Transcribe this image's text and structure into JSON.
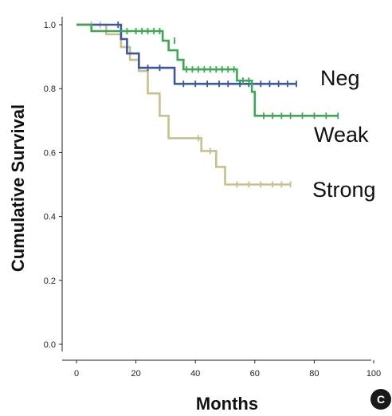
{
  "chart_data": {
    "type": "line",
    "xlabel": "Months",
    "ylabel": "Cumulative Survival",
    "xlim": [
      0,
      100
    ],
    "ylim": [
      0,
      1.0
    ],
    "x_ticks": [
      0,
      20,
      40,
      60,
      80,
      100
    ],
    "y_ticks": [
      0.0,
      0.2,
      0.4,
      0.6,
      0.8,
      1.0
    ],
    "x_tick_labels": [
      "0",
      "20",
      "40",
      "60",
      "80",
      "100"
    ],
    "y_tick_labels": [
      "0.0",
      "0.2",
      "0.4",
      "0.6",
      "0.8",
      "1.0"
    ],
    "panel_label": "C",
    "grid": false,
    "series": [
      {
        "name": "Neg",
        "color": "#3a56a8",
        "step_points": [
          [
            0,
            1.0
          ],
          [
            15,
            1.0
          ],
          [
            15,
            0.955
          ],
          [
            17,
            0.955
          ],
          [
            17,
            0.91
          ],
          [
            21,
            0.91
          ],
          [
            21,
            0.865
          ],
          [
            33,
            0.865
          ],
          [
            33,
            0.815
          ],
          [
            74,
            0.815
          ]
        ],
        "censored": [
          [
            14,
            1.0
          ],
          [
            24,
            0.865
          ],
          [
            28,
            0.865
          ],
          [
            36,
            0.815
          ],
          [
            40,
            0.815
          ],
          [
            44,
            0.815
          ],
          [
            48,
            0.815
          ],
          [
            51,
            0.815
          ],
          [
            55,
            0.815
          ],
          [
            58,
            0.815
          ],
          [
            62,
            0.815
          ],
          [
            65,
            0.815
          ],
          [
            68,
            0.815
          ],
          [
            71,
            0.815
          ],
          [
            74,
            0.815
          ]
        ]
      },
      {
        "name": "Weak",
        "color": "#3aaa50",
        "step_points": [
          [
            0,
            1.0
          ],
          [
            5,
            1.0
          ],
          [
            5,
            0.98
          ],
          [
            29,
            0.98
          ],
          [
            29,
            0.95
          ],
          [
            31,
            0.95
          ],
          [
            31,
            0.92
          ],
          [
            34,
            0.92
          ],
          [
            34,
            0.89
          ],
          [
            36,
            0.89
          ],
          [
            36,
            0.86
          ],
          [
            54,
            0.86
          ],
          [
            54,
            0.825
          ],
          [
            59,
            0.825
          ],
          [
            59,
            0.79
          ],
          [
            60,
            0.79
          ],
          [
            60,
            0.715
          ],
          [
            88,
            0.715
          ]
        ],
        "censored": [
          [
            17,
            0.98
          ],
          [
            20,
            0.98
          ],
          [
            22,
            0.98
          ],
          [
            24,
            0.98
          ],
          [
            26,
            0.98
          ],
          [
            28,
            0.98
          ],
          [
            33,
            0.95
          ],
          [
            37,
            0.86
          ],
          [
            39,
            0.86
          ],
          [
            41,
            0.86
          ],
          [
            43,
            0.86
          ],
          [
            45,
            0.86
          ],
          [
            47,
            0.86
          ],
          [
            49,
            0.86
          ],
          [
            51,
            0.86
          ],
          [
            53,
            0.86
          ],
          [
            56,
            0.825
          ],
          [
            58,
            0.825
          ],
          [
            63,
            0.715
          ],
          [
            66,
            0.715
          ],
          [
            69,
            0.715
          ],
          [
            72,
            0.715
          ],
          [
            76,
            0.715
          ],
          [
            80,
            0.715
          ],
          [
            84,
            0.715
          ],
          [
            88,
            0.715
          ]
        ]
      },
      {
        "name": "Strong",
        "color": "#c8c08a",
        "step_points": [
          [
            0,
            1.0
          ],
          [
            10,
            1.0
          ],
          [
            10,
            0.97
          ],
          [
            15,
            0.97
          ],
          [
            15,
            0.93
          ],
          [
            18,
            0.93
          ],
          [
            18,
            0.89
          ],
          [
            21,
            0.89
          ],
          [
            21,
            0.855
          ],
          [
            24,
            0.855
          ],
          [
            24,
            0.785
          ],
          [
            28,
            0.785
          ],
          [
            28,
            0.715
          ],
          [
            31,
            0.715
          ],
          [
            31,
            0.645
          ],
          [
            42,
            0.645
          ],
          [
            42,
            0.605
          ],
          [
            47,
            0.605
          ],
          [
            47,
            0.555
          ],
          [
            50,
            0.555
          ],
          [
            50,
            0.5
          ],
          [
            72,
            0.5
          ]
        ],
        "censored": [
          [
            5,
            1.0
          ],
          [
            8,
            1.0
          ],
          [
            41,
            0.645
          ],
          [
            45,
            0.605
          ],
          [
            54,
            0.5
          ],
          [
            58,
            0.5
          ],
          [
            62,
            0.5
          ],
          [
            66,
            0.5
          ],
          [
            69,
            0.5
          ],
          [
            72,
            0.5
          ]
        ]
      }
    ]
  }
}
